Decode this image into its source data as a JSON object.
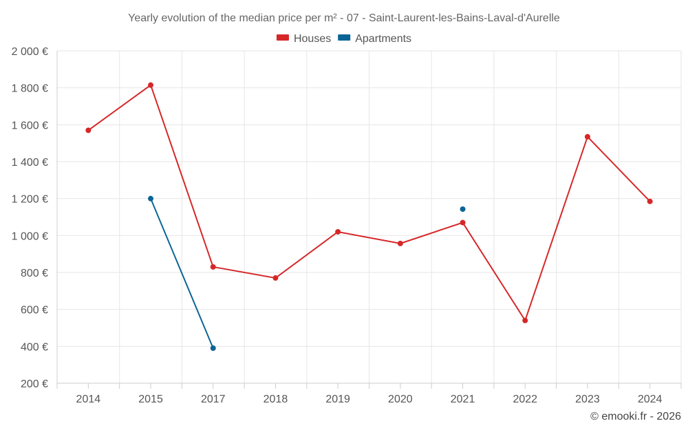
{
  "chart_data": {
    "type": "line",
    "title": "Yearly evolution of the median price per m² - 07 - Saint-Laurent-les-Bains-Laval-d'Aurelle",
    "categories": [
      "2014",
      "2015",
      "2017",
      "2018",
      "2019",
      "2020",
      "2021",
      "2022",
      "2023",
      "2024"
    ],
    "series": [
      {
        "name": "Houses",
        "color": "#d62728",
        "values": [
          1570,
          1815,
          830,
          770,
          1020,
          957,
          1070,
          540,
          1535,
          1185
        ]
      },
      {
        "name": "Apartments",
        "color": "#0a6496",
        "values": [
          null,
          1200,
          390,
          null,
          null,
          null,
          1143,
          null,
          null,
          null
        ]
      }
    ],
    "ylim": [
      200,
      2000
    ],
    "yticks": [
      200,
      400,
      600,
      800,
      1000,
      1200,
      1400,
      1600,
      1800,
      2000
    ],
    "ytick_labels": [
      "200 €",
      "400 €",
      "600 €",
      "800 €",
      "1 000 €",
      "1 200 €",
      "1 400 €",
      "1 600 €",
      "1 800 €",
      "2 000 €"
    ],
    "grid": true,
    "legend_position": "top-center",
    "xlabel": "",
    "ylabel": ""
  },
  "credit": "© emooki.fr - 2026"
}
